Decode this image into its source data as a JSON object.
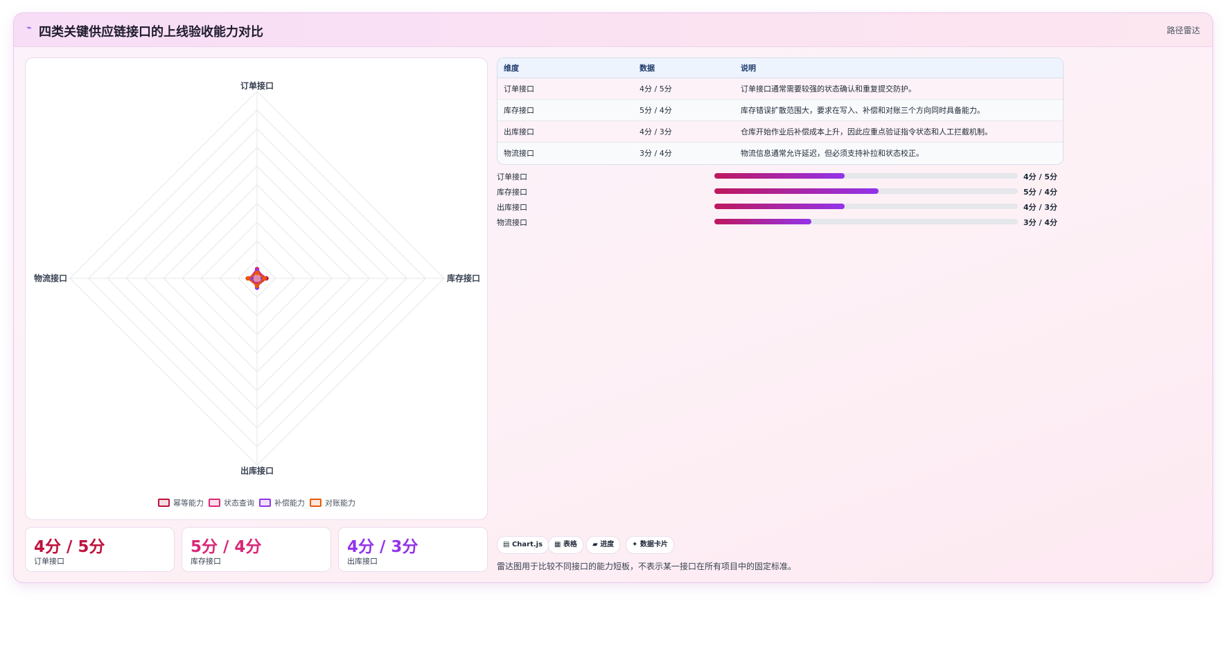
{
  "header": {
    "icon": "⌁",
    "title": "四类关键供应链接口的上线验收能力对比",
    "tag": "路径雷达"
  },
  "chart_data": {
    "type": "radar",
    "axes": [
      "订单接口",
      "库存接口",
      "出库接口",
      "物流接口"
    ],
    "r_range": [
      0,
      100
    ],
    "grid_levels": 10,
    "series": [
      {
        "name": "幂等能力",
        "color": "#be123c",
        "values": [
          4,
          5,
          4,
          3
        ]
      },
      {
        "name": "状态查询",
        "color": "#db2777",
        "values": [
          5,
          4,
          3,
          4
        ]
      },
      {
        "name": "补偿能力",
        "color": "#9333ea",
        "values": [
          4,
          3,
          5,
          3
        ]
      },
      {
        "name": "对账能力",
        "color": "#ea580c",
        "values": [
          3,
          4,
          4,
          5
        ]
      }
    ],
    "legend_position": "bottom"
  },
  "stats": [
    {
      "value": "4分 / 5分",
      "label": "订单接口",
      "color": "#be123c"
    },
    {
      "value": "5分 / 4分",
      "label": "库存接口",
      "color": "#db2777"
    },
    {
      "value": "4分 / 3分",
      "label": "出库接口",
      "color": "#9333ea"
    }
  ],
  "table": {
    "headers": [
      "维度",
      "数据",
      "说明"
    ],
    "rows": [
      [
        "订单接口",
        "4分 / 5分",
        "订单接口通常需要较强的状态确认和重复提交防护。"
      ],
      [
        "库存接口",
        "5分 / 4分",
        "库存错误扩散范围大，要求在写入、补偿和对账三个方向同时具备能力。"
      ],
      [
        "出库接口",
        "4分 / 3分",
        "仓库开始作业后补偿成本上升，因此应重点验证指令状态和人工拦截机制。"
      ],
      [
        "物流接口",
        "3分 / 4分",
        "物流信息通常允许延迟，但必须支持补拉和状态校正。"
      ]
    ]
  },
  "bars": [
    {
      "label": "订单接口",
      "value": "4分 / 5分",
      "progress": 0.43
    },
    {
      "label": "库存接口",
      "value": "5分 / 4分",
      "progress": 0.54
    },
    {
      "label": "出库接口",
      "value": "4分 / 3分",
      "progress": 0.43
    },
    {
      "label": "物流接口",
      "value": "3分 / 4分",
      "progress": 0.32
    }
  ],
  "chips": [
    {
      "icon": "▤",
      "label": "Chart.js"
    },
    {
      "icon": "▦",
      "label": "表格"
    },
    {
      "icon": "▰",
      "label": "进度"
    },
    {
      "icon": "✦",
      "label": "数据卡片"
    }
  ],
  "note": "雷达图用于比较不同接口的能力短板，不表示某一接口在所有项目中的固定标准。"
}
